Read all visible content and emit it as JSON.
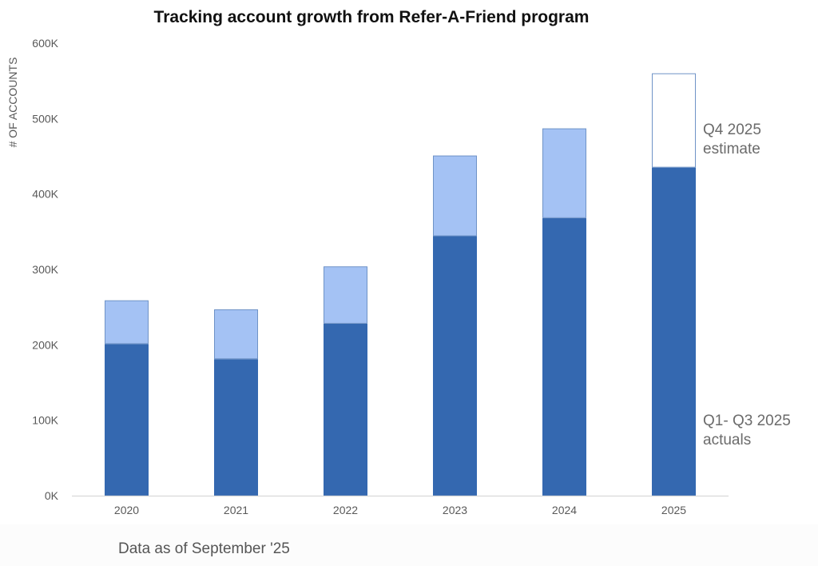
{
  "chart_data": {
    "type": "bar",
    "stacked": true,
    "title": "Tracking account growth from Refer-A-Friend program",
    "xlabel": "",
    "ylabel": "# OF ACCOUNTS",
    "categories": [
      "2020",
      "2021",
      "2022",
      "2023",
      "2024",
      "2025"
    ],
    "series": [
      {
        "values": [
          201000,
          181000,
          228000,
          344000,
          368000,
          435000
        ],
        "color": "#3468b0"
      },
      {
        "values": [
          58000,
          66000,
          76000,
          107000,
          119000,
          125000
        ],
        "color": "#a4c2f4",
        "last_color": "#ffffff"
      }
    ],
    "ylim": [
      0,
      600000
    ],
    "yticks": [
      0,
      100000,
      200000,
      300000,
      400000,
      500000,
      600000
    ],
    "ytick_labels": [
      "0K",
      "100K",
      "200K",
      "300K",
      "400K",
      "500K",
      "600K"
    ],
    "grid": false,
    "annotations": [
      {
        "lines": [
          "Q4 2025",
          "estimate"
        ]
      },
      {
        "lines": [
          "Q1- Q3 2025",
          "actuals"
        ]
      }
    ],
    "footnote": "Data as of September '25"
  },
  "colors": {
    "bar_outline": "#6f93c7",
    "axis": "#d9d9d9",
    "text": "#595959"
  }
}
